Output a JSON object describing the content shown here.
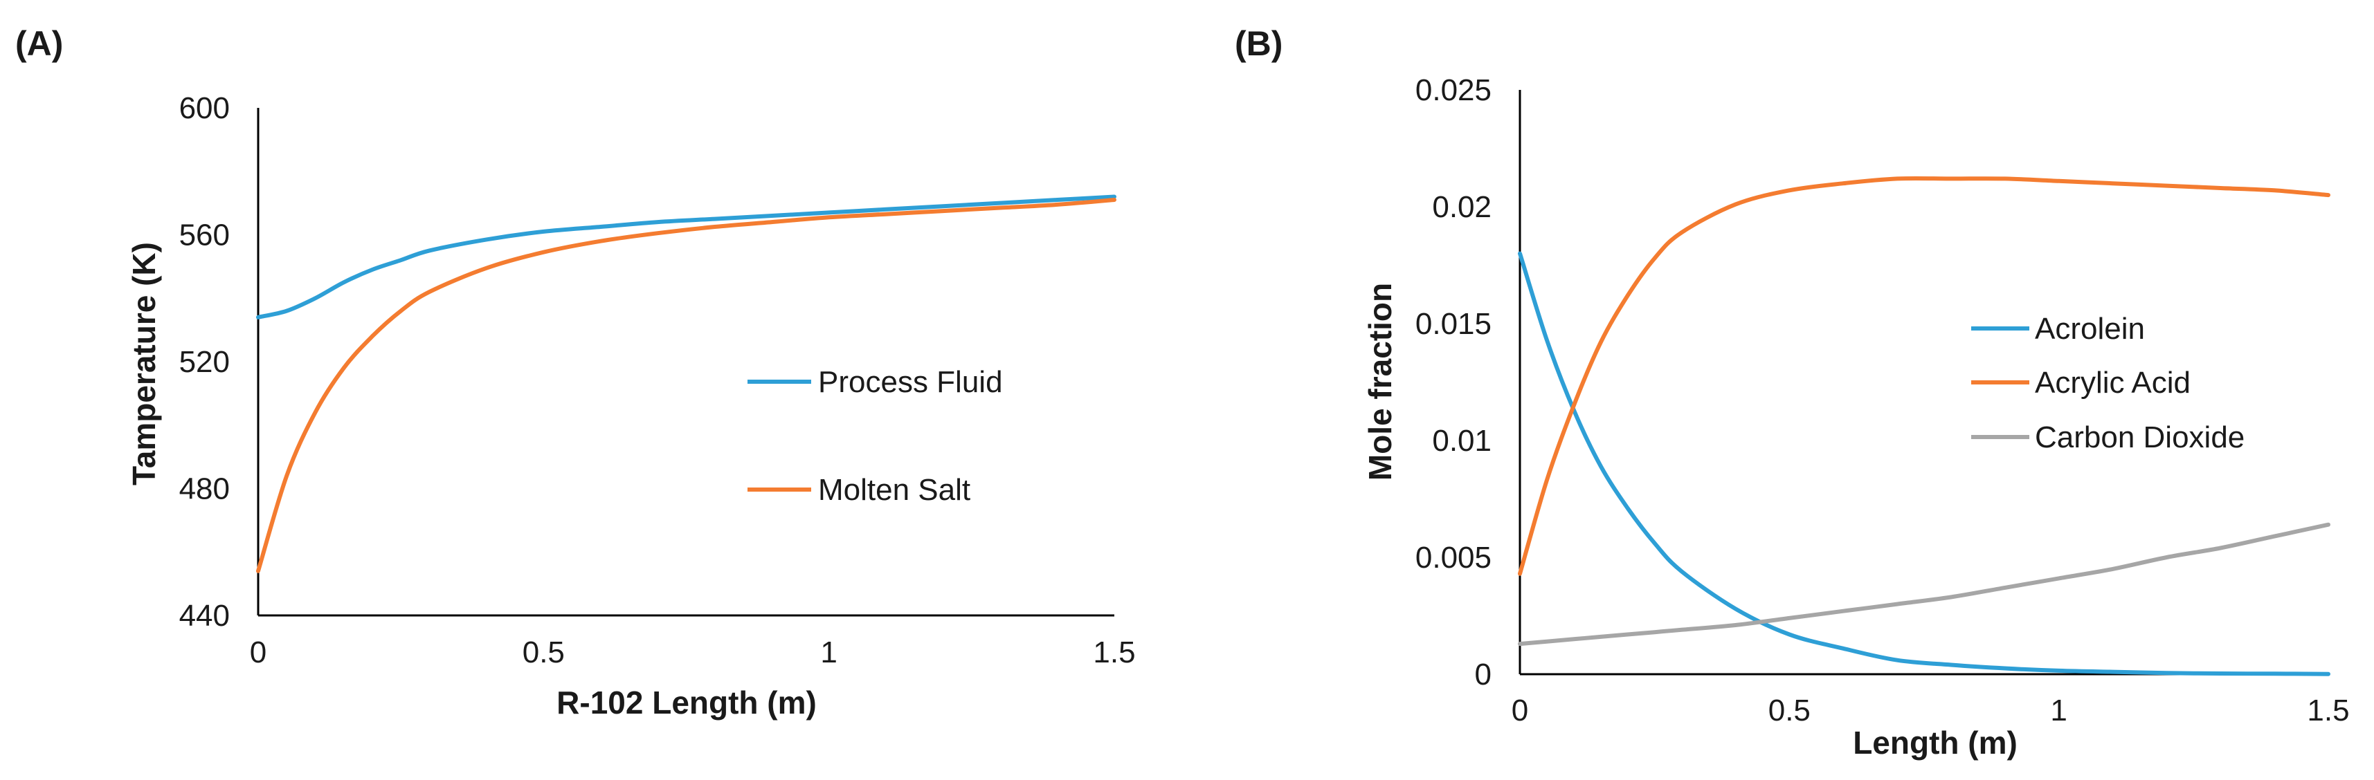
{
  "chart_data": [
    {
      "panel_label": "(A)",
      "type": "line",
      "xlabel": "R-102 Length (m)",
      "ylabel": "Tamperature (K)",
      "xlim": [
        0,
        1.5
      ],
      "ylim": [
        440,
        600
      ],
      "x_ticks": [
        0,
        0.5,
        1,
        1.5
      ],
      "x_tick_labels": [
        "0",
        "0.5",
        "1",
        "1.5"
      ],
      "y_ticks": [
        440,
        480,
        520,
        560,
        600
      ],
      "y_tick_labels": [
        "440",
        "480",
        "520",
        "560",
        "600"
      ],
      "grid": false,
      "legend_position": "center-right",
      "x": [
        0,
        0.05,
        0.1,
        0.15,
        0.2,
        0.25,
        0.3,
        0.4,
        0.5,
        0.6,
        0.7,
        0.8,
        0.9,
        1.0,
        1.1,
        1.2,
        1.3,
        1.4,
        1.5
      ],
      "series": [
        {
          "name": "Process Fluid",
          "color": "#2e9fd6",
          "values": [
            534,
            536,
            540,
            545,
            549,
            552,
            555,
            558.5,
            561,
            562.5,
            564,
            565,
            566,
            567,
            568,
            569,
            570,
            571,
            572
          ]
        },
        {
          "name": "Molten Salt",
          "color": "#f47c30",
          "values": [
            454,
            484,
            504,
            518,
            528,
            536,
            542,
            549.5,
            554.5,
            558,
            560.5,
            562.5,
            564,
            565.5,
            566.5,
            567.5,
            568.5,
            569.5,
            571
          ]
        }
      ]
    },
    {
      "panel_label": "(B)",
      "type": "line",
      "xlabel": "Length (m)",
      "ylabel": "Mole fraction",
      "xlim": [
        0,
        1.5
      ],
      "ylim": [
        0,
        0.025
      ],
      "x_ticks": [
        0,
        0.5,
        1,
        1.5
      ],
      "x_tick_labels": [
        "0",
        "0.5",
        "1",
        "1.5"
      ],
      "y_ticks": [
        0,
        0.005,
        0.01,
        0.015,
        0.02,
        0.025
      ],
      "y_tick_labels": [
        "0",
        "0.005",
        "0.01",
        "0.015",
        "0.02",
        "0.025"
      ],
      "grid": false,
      "legend_position": "center-right",
      "x": [
        0,
        0.05,
        0.1,
        0.15,
        0.2,
        0.25,
        0.3,
        0.4,
        0.5,
        0.6,
        0.7,
        0.8,
        0.9,
        1.0,
        1.1,
        1.2,
        1.3,
        1.4,
        1.5
      ],
      "series": [
        {
          "name": "Acrolein",
          "color": "#2e9fd6",
          "values": [
            0.018,
            0.0143,
            0.0113,
            0.0089,
            0.0071,
            0.0056,
            0.0044,
            0.0028,
            0.0017,
            0.0011,
            0.0006,
            0.0004,
            0.00025,
            0.00015,
            0.0001,
            5e-05,
            3e-05,
            2e-05,
            1e-05
          ]
        },
        {
          "name": "Acrylic Acid",
          "color": "#f47c30",
          "values": [
            0.0043,
            0.0083,
            0.0115,
            0.0142,
            0.0162,
            0.0178,
            0.0189,
            0.0201,
            0.0207,
            0.021,
            0.0212,
            0.0212,
            0.0212,
            0.0211,
            0.021,
            0.0209,
            0.0208,
            0.0207,
            0.0205
          ]
        },
        {
          "name": "Carbon Dioxide",
          "color": "#a6a6a6",
          "values": [
            0.0013,
            0.0014,
            0.0015,
            0.0016,
            0.0017,
            0.0018,
            0.0019,
            0.0021,
            0.0024,
            0.0027,
            0.003,
            0.0033,
            0.0037,
            0.0041,
            0.0045,
            0.005,
            0.0054,
            0.0059,
            0.0064
          ]
        }
      ]
    }
  ]
}
